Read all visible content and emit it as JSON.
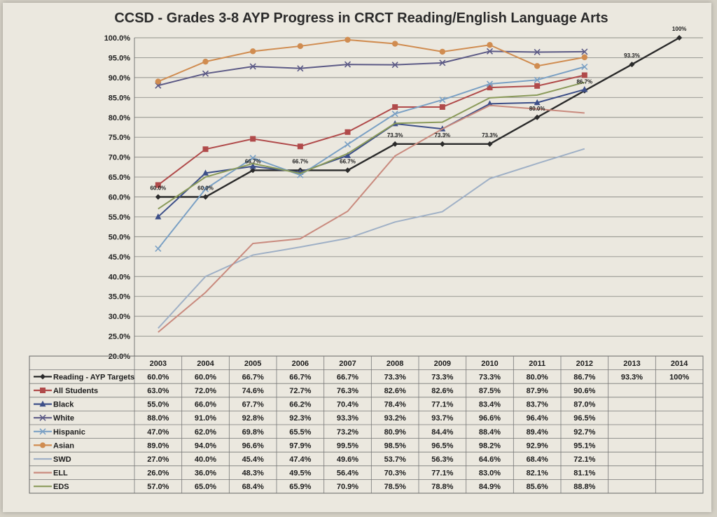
{
  "chart_data": {
    "type": "line",
    "title": "CCSD - Grades 3-8 AYP Progress in CRCT Reading/English Language Arts",
    "categories": [
      "2003",
      "2004",
      "2005",
      "2006",
      "2007",
      "2008",
      "2009",
      "2010",
      "2011",
      "2012",
      "2013",
      "2014"
    ],
    "y_ticks": [
      "100.0%",
      "95.0%",
      "90.0%",
      "85.0%",
      "80.0%",
      "75.0%",
      "70.0%",
      "65.0%",
      "60.0%",
      "55.0%",
      "50.0%",
      "45.0%",
      "40.0%",
      "35.0%",
      "30.0%",
      "25.0%",
      "20.0%"
    ],
    "ylim": [
      20,
      100
    ],
    "grid": true,
    "legend": "data table below plot",
    "series": [
      {
        "name": "Reading - AYP Targets",
        "color": "#2a2a2a",
        "marker": "diamond",
        "values": [
          60.0,
          60.0,
          66.7,
          66.7,
          66.7,
          73.3,
          73.3,
          73.3,
          80.0,
          86.7,
          93.3,
          100
        ],
        "labels": [
          "60.0%",
          "60.0%",
          "66.7%",
          "66.7%",
          "66.7%",
          "73.3%",
          "73.3%",
          "73.3%",
          "80.0%",
          "86.7%",
          "93.3%",
          "100%"
        ]
      },
      {
        "name": "All Students",
        "color": "#b04a4a",
        "marker": "square",
        "values": [
          63.0,
          72.0,
          74.6,
          72.7,
          76.3,
          82.6,
          82.6,
          87.5,
          87.9,
          90.6,
          null,
          null
        ],
        "labels": [
          "63.0%",
          "72.0%",
          "74.6%",
          "72.7%",
          "76.3%",
          "82.6%",
          "82.6%",
          "87.5%",
          "87.9%",
          "90.6%",
          "",
          ""
        ]
      },
      {
        "name": "Black",
        "color": "#3d4f88",
        "marker": "triangle",
        "values": [
          55.0,
          66.0,
          67.7,
          66.2,
          70.4,
          78.4,
          77.1,
          83.4,
          83.7,
          87.0,
          null,
          null
        ],
        "labels": [
          "55.0%",
          "66.0%",
          "67.7%",
          "66.2%",
          "70.4%",
          "78.4%",
          "77.1%",
          "83.4%",
          "83.7%",
          "87.0%",
          "",
          ""
        ]
      },
      {
        "name": "White",
        "color": "#5c5a86",
        "marker": "x",
        "values": [
          88.0,
          91.0,
          92.8,
          92.3,
          93.3,
          93.2,
          93.7,
          96.6,
          96.4,
          96.5,
          null,
          null
        ],
        "labels": [
          "88.0%",
          "91.0%",
          "92.8%",
          "92.3%",
          "93.3%",
          "93.2%",
          "93.7%",
          "96.6%",
          "96.4%",
          "96.5%",
          "",
          ""
        ]
      },
      {
        "name": "Hispanic",
        "color": "#7aa0c4",
        "marker": "x",
        "values": [
          47.0,
          62.0,
          69.8,
          65.5,
          73.2,
          80.9,
          84.4,
          88.4,
          89.4,
          92.7,
          null,
          null
        ],
        "labels": [
          "47.0%",
          "62.0%",
          "69.8%",
          "65.5%",
          "73.2%",
          "80.9%",
          "84.4%",
          "88.4%",
          "89.4%",
          "92.7%",
          "",
          ""
        ]
      },
      {
        "name": "Asian",
        "color": "#d08c50",
        "marker": "circle",
        "values": [
          89.0,
          94.0,
          96.6,
          97.9,
          99.5,
          98.5,
          96.5,
          98.2,
          92.9,
          95.1,
          null,
          null
        ],
        "labels": [
          "89.0%",
          "94.0%",
          "96.6%",
          "97.9%",
          "99.5%",
          "98.5%",
          "96.5%",
          "98.2%",
          "92.9%",
          "95.1%",
          "",
          ""
        ]
      },
      {
        "name": "SWD",
        "color": "#9fb0c6",
        "marker": "none",
        "values": [
          27.0,
          40.0,
          45.4,
          47.4,
          49.6,
          53.7,
          56.3,
          64.6,
          68.4,
          72.1,
          null,
          null
        ],
        "labels": [
          "27.0%",
          "40.0%",
          "45.4%",
          "47.4%",
          "49.6%",
          "53.7%",
          "56.3%",
          "64.6%",
          "68.4%",
          "72.1%",
          "",
          ""
        ]
      },
      {
        "name": "ELL",
        "color": "#c98a7e",
        "marker": "none",
        "values": [
          26.0,
          36.0,
          48.3,
          49.5,
          56.4,
          70.3,
          77.1,
          83.0,
          82.1,
          81.1,
          null,
          null
        ],
        "labels": [
          "26.0%",
          "36.0%",
          "48.3%",
          "49.5%",
          "56.4%",
          "70.3%",
          "77.1%",
          "83.0%",
          "82.1%",
          "81.1%",
          "",
          ""
        ]
      },
      {
        "name": "EDS",
        "color": "#8a9a5a",
        "marker": "none",
        "values": [
          57.0,
          65.0,
          68.4,
          65.9,
          70.9,
          78.5,
          78.8,
          84.9,
          85.6,
          88.8,
          null,
          null
        ],
        "labels": [
          "57.0%",
          "65.0%",
          "68.4%",
          "65.9%",
          "70.9%",
          "78.5%",
          "78.8%",
          "84.9%",
          "85.6%",
          "88.8%",
          "",
          ""
        ]
      }
    ]
  }
}
